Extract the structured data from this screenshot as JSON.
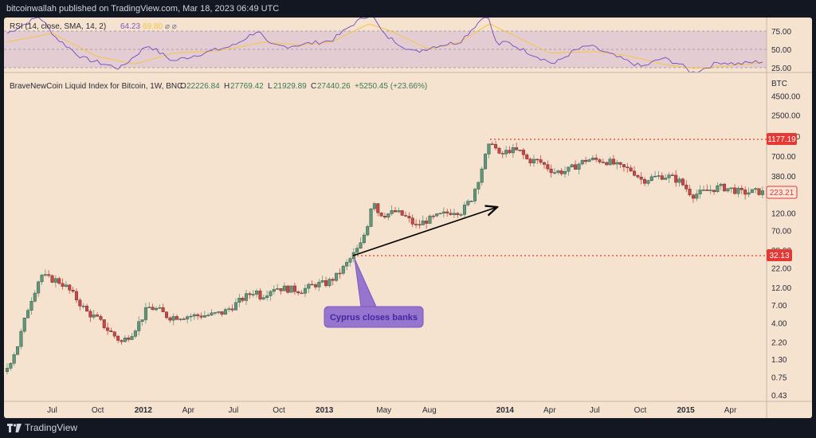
{
  "header": {
    "publish_line": "bitcoinwallah published on TradingView.com, Mar 18, 2023 06:49 UTC"
  },
  "footer": {
    "brand": "TradingView"
  },
  "rsi": {
    "label": "RSI (14, close, SMA, 14, 2)",
    "value": "64.23",
    "sma_value": "69.80",
    "na_marks": "⌀ ⌀",
    "ticks": [
      "75.00",
      "50.00",
      "25.00"
    ],
    "colors": {
      "rsi": "#7e57c2",
      "sma": "#f5c542",
      "band": "#7e57c2"
    }
  },
  "main": {
    "symbol": "BraveNewCoin Liquid Index for Bitcoin, 1W, BNC",
    "ohlc": {
      "o_label": "O",
      "o": "22226.84",
      "h_label": "H",
      "h": "27769.42",
      "l_label": "L",
      "l": "21929.89",
      "c_label": "C",
      "c": "27440.26",
      "change": "+5250.45 (+23.66%)"
    },
    "annotation": "Cyprus closes banks",
    "level_high": "1177.19",
    "level_low": "32.13",
    "last_price": "223.21",
    "colors": {
      "up": "#5b9a78",
      "down": "#d3413f",
      "level": "#e53935",
      "callout": "#9575cd",
      "callout_text": "#5e35b1"
    }
  },
  "chart_data": {
    "type": "candlestick",
    "scale": "log",
    "currency": "BTC",
    "y_ticks": [
      4500,
      2500,
      1300,
      700,
      380,
      220,
      120,
      70,
      38,
      22,
      12,
      7,
      4,
      2.2,
      1.3,
      0.75,
      0.43
    ],
    "y_tick_labels": [
      "4500.00",
      "2500.00",
      "1300.00",
      "700.00",
      "380.00",
      "220.00",
      "120.00",
      "70.00",
      "38.00",
      "22.00",
      "12.00",
      "7.00",
      "4.00",
      "2.20",
      "1.30",
      "0.75",
      "0.43"
    ],
    "x_ticks": [
      {
        "label": "Jul",
        "date": "2011-07-01"
      },
      {
        "label": "Oct",
        "date": "2011-10-01"
      },
      {
        "label": "2012",
        "date": "2012-01-01",
        "bold": true
      },
      {
        "label": "Apr",
        "date": "2012-04-01"
      },
      {
        "label": "Jul",
        "date": "2012-07-01"
      },
      {
        "label": "Oct",
        "date": "2012-10-01"
      },
      {
        "label": "2013",
        "date": "2013-01-01",
        "bold": true
      },
      {
        "label": "May",
        "date": "2013-05-01"
      },
      {
        "label": "Aug",
        "date": "2013-08-01"
      },
      {
        "label": "2014",
        "date": "2014-01-01",
        "bold": true
      },
      {
        "label": "Apr",
        "date": "2014-04-01"
      },
      {
        "label": "Jul",
        "date": "2014-07-01"
      },
      {
        "label": "Oct",
        "date": "2014-10-01"
      },
      {
        "label": "2015",
        "date": "2015-01-01",
        "bold": true
      },
      {
        "label": "Apr",
        "date": "2015-04-01"
      }
    ],
    "price_path": [
      [
        "2011-04-01",
        1.0
      ],
      [
        "2011-04-22",
        2.0
      ],
      [
        "2011-05-15",
        7.0
      ],
      [
        "2011-06-08",
        18.0
      ],
      [
        "2011-06-20",
        16.0
      ],
      [
        "2011-07-10",
        15.0
      ],
      [
        "2011-07-25",
        13.0
      ],
      [
        "2011-08-10",
        10.0
      ],
      [
        "2011-08-25",
        7.5
      ],
      [
        "2011-09-10",
        5.5
      ],
      [
        "2011-10-01",
        4.5
      ],
      [
        "2011-10-20",
        3.3
      ],
      [
        "2011-11-18",
        2.2
      ],
      [
        "2011-12-10",
        3.0
      ],
      [
        "2011-12-28",
        4.5
      ],
      [
        "2012-01-10",
        6.5
      ],
      [
        "2012-02-01",
        6.0
      ],
      [
        "2012-02-20",
        4.8
      ],
      [
        "2012-03-15",
        4.9
      ],
      [
        "2012-04-15",
        5.0
      ],
      [
        "2012-05-15",
        5.1
      ],
      [
        "2012-06-10",
        5.5
      ],
      [
        "2012-07-01",
        6.8
      ],
      [
        "2012-07-20",
        8.5
      ],
      [
        "2012-08-15",
        11.0
      ],
      [
        "2012-08-25",
        9.0
      ],
      [
        "2012-09-20",
        12.0
      ],
      [
        "2012-10-20",
        11.5
      ],
      [
        "2012-11-15",
        10.9
      ],
      [
        "2012-12-15",
        13.3
      ],
      [
        "2013-01-05",
        13.6
      ],
      [
        "2013-01-25",
        17.0
      ],
      [
        "2013-02-15",
        25.0
      ],
      [
        "2013-03-16",
        46.0
      ],
      [
        "2013-03-30",
        90.0
      ],
      [
        "2013-04-09",
        200.0
      ],
      [
        "2013-04-20",
        120.0
      ],
      [
        "2013-05-05",
        115.0
      ],
      [
        "2013-05-25",
        125.0
      ],
      [
        "2013-06-15",
        105.0
      ],
      [
        "2013-07-05",
        80.0
      ],
      [
        "2013-07-25",
        95.0
      ],
      [
        "2013-08-20",
        110.0
      ],
      [
        "2013-09-20",
        130.0
      ],
      [
        "2013-10-05",
        125.0
      ],
      [
        "2013-10-25",
        190.0
      ],
      [
        "2013-11-10",
        380.0
      ],
      [
        "2013-11-25",
        800.0
      ],
      [
        "2013-12-05",
        1150.0
      ],
      [
        "2013-12-20",
        700.0
      ],
      [
        "2014-01-10",
        850.0
      ],
      [
        "2014-02-01",
        800.0
      ],
      [
        "2014-02-15",
        620.0
      ],
      [
        "2014-03-10",
        600.0
      ],
      [
        "2014-04-10",
        430.0
      ],
      [
        "2014-05-05",
        440.0
      ],
      [
        "2014-05-25",
        530.0
      ],
      [
        "2014-06-15",
        630.0
      ],
      [
        "2014-07-10",
        620.0
      ],
      [
        "2014-07-30",
        590.0
      ],
      [
        "2014-08-20",
        500.0
      ],
      [
        "2014-09-15",
        450.0
      ],
      [
        "2014-10-05",
        330.0
      ],
      [
        "2014-10-25",
        360.0
      ],
      [
        "2014-11-15",
        380.0
      ],
      [
        "2014-12-01",
        370.0
      ],
      [
        "2014-12-20",
        320.0
      ],
      [
        "2015-01-14",
        210.0
      ],
      [
        "2015-02-05",
        230.0
      ],
      [
        "2015-03-10",
        270.0
      ],
      [
        "2015-04-05",
        250.0
      ],
      [
        "2015-04-25",
        225.0
      ],
      [
        "2015-05-25",
        235.0
      ],
      [
        "2015-06-10",
        223.0
      ]
    ],
    "rsi_path": [
      [
        "2011-04-01",
        72
      ],
      [
        "2011-06-05",
        95
      ],
      [
        "2011-07-10",
        65
      ],
      [
        "2011-09-01",
        38
      ],
      [
        "2011-11-15",
        24
      ],
      [
        "2012-01-10",
        56
      ],
      [
        "2012-03-01",
        34
      ],
      [
        "2012-05-01",
        45
      ],
      [
        "2012-07-01",
        55
      ],
      [
        "2012-08-20",
        76
      ],
      [
        "2012-09-10",
        56
      ],
      [
        "2012-10-15",
        54
      ],
      [
        "2012-12-01",
        58
      ],
      [
        "2013-01-15",
        62
      ],
      [
        "2013-03-01",
        85
      ],
      [
        "2013-04-05",
        99
      ],
      [
        "2013-05-01",
        70
      ],
      [
        "2013-07-01",
        46
      ],
      [
        "2013-08-15",
        55
      ],
      [
        "2013-10-01",
        60
      ],
      [
        "2013-11-25",
        99
      ],
      [
        "2013-12-15",
        56
      ],
      [
        "2014-01-05",
        60
      ],
      [
        "2014-02-10",
        48
      ],
      [
        "2014-04-10",
        30
      ],
      [
        "2014-05-20",
        48
      ],
      [
        "2014-06-20",
        55
      ],
      [
        "2014-08-20",
        38
      ],
      [
        "2014-10-05",
        26
      ],
      [
        "2014-11-15",
        38
      ],
      [
        "2014-12-20",
        30
      ],
      [
        "2015-01-14",
        18
      ],
      [
        "2015-02-15",
        26
      ],
      [
        "2015-03-10",
        33
      ],
      [
        "2015-04-15",
        30
      ],
      [
        "2015-06-10",
        34
      ]
    ],
    "rsi_sma_path": [
      [
        "2011-04-01",
        60
      ],
      [
        "2011-07-01",
        72
      ],
      [
        "2011-10-01",
        40
      ],
      [
        "2011-12-15",
        30
      ],
      [
        "2012-03-01",
        45
      ],
      [
        "2012-06-01",
        48
      ],
      [
        "2012-09-01",
        60
      ],
      [
        "2012-11-15",
        56
      ],
      [
        "2013-01-15",
        60
      ],
      [
        "2013-04-01",
        85
      ],
      [
        "2013-05-15",
        75
      ],
      [
        "2013-08-01",
        50
      ],
      [
        "2013-10-01",
        60
      ],
      [
        "2013-12-01",
        85
      ],
      [
        "2014-01-15",
        70
      ],
      [
        "2014-04-01",
        45
      ],
      [
        "2014-07-01",
        47
      ],
      [
        "2014-09-01",
        42
      ],
      [
        "2014-11-15",
        30
      ],
      [
        "2015-01-15",
        24
      ],
      [
        "2015-03-01",
        26
      ],
      [
        "2015-06-10",
        32
      ]
    ]
  }
}
